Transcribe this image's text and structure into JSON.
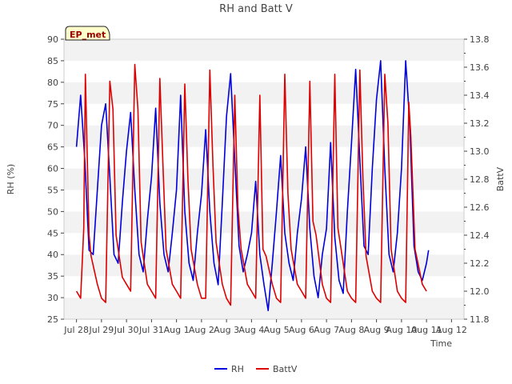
{
  "chart_data": {
    "type": "line",
    "title": "RH and Batt V",
    "xlabel": "Time",
    "ylabel_left": "RH (%)",
    "ylabel_right": "BattV",
    "station_label": "EP_met",
    "x_ticks": [
      "Jul 28",
      "Jul 29",
      "Jul 30",
      "Jul 31",
      "Aug 1",
      "Aug 2",
      "Aug 3",
      "Aug 4",
      "Aug 5",
      "Aug 6",
      "Aug 7",
      "Aug 8",
      "Aug 9",
      "Aug 10",
      "Aug 11",
      "Aug 12"
    ],
    "x_tick_labels": [
      "Jul 28",
      "Jul 29",
      "Jul 30",
      "Jul 31",
      "Aug 1",
      "Aug 2",
      "Aug 3",
      "Aug 4",
      "Aug 5",
      "Aug 6",
      "Aug 7",
      "Aug 8",
      "Aug 9",
      "Aug 10",
      "Aug 11",
      "Aug 12"
    ],
    "ylim_left": [
      25,
      90
    ],
    "yticks_left": [
      25,
      30,
      35,
      40,
      45,
      50,
      55,
      60,
      65,
      70,
      75,
      80,
      85,
      90
    ],
    "ylim_right": [
      11.8,
      13.8
    ],
    "yticks_right": [
      11.8,
      12.0,
      12.2,
      12.4,
      12.6,
      12.8,
      13.0,
      13.2,
      13.4,
      13.6,
      13.8
    ],
    "grid": "horizontal bands",
    "legend_position": "bottom-center",
    "series": [
      {
        "name": "RH",
        "axis": "left",
        "color": "#0000dd",
        "points": [
          [
            "Jul 28 00:00",
            65
          ],
          [
            "Jul 28 04:00",
            77
          ],
          [
            "Jul 28 08:00",
            62
          ],
          [
            "Jul 28 12:00",
            41
          ],
          [
            "Jul 28 16:00",
            40
          ],
          [
            "Jul 28 20:00",
            55
          ],
          [
            "Jul 29 00:00",
            70
          ],
          [
            "Jul 29 04:00",
            75
          ],
          [
            "Jul 29 08:00",
            58
          ],
          [
            "Jul 29 12:00",
            40
          ],
          [
            "Jul 29 16:00",
            38
          ],
          [
            "Jul 29 20:00",
            52
          ],
          [
            "Jul 30 00:00",
            64
          ],
          [
            "Jul 30 04:00",
            73
          ],
          [
            "Jul 30 08:00",
            55
          ],
          [
            "Jul 30 12:00",
            40
          ],
          [
            "Jul 30 16:00",
            36
          ],
          [
            "Jul 30 20:00",
            48
          ],
          [
            "Jul 31 00:00",
            58
          ],
          [
            "Jul 31 04:00",
            74
          ],
          [
            "Jul 31 08:00",
            52
          ],
          [
            "Jul 31 12:00",
            40
          ],
          [
            "Jul 31 16:00",
            36
          ],
          [
            "Jul 31 20:00",
            45
          ],
          [
            "Aug 1 00:00",
            55
          ],
          [
            "Aug 1 04:00",
            77
          ],
          [
            "Aug 1 08:00",
            50
          ],
          [
            "Aug 1 12:00",
            38
          ],
          [
            "Aug 1 16:00",
            34
          ],
          [
            "Aug 1 20:00",
            45
          ],
          [
            "Aug 2 00:00",
            54
          ],
          [
            "Aug 2 04:00",
            69
          ],
          [
            "Aug 2 08:00",
            50
          ],
          [
            "Aug 2 12:00",
            38
          ],
          [
            "Aug 2 16:00",
            33
          ],
          [
            "Aug 2 20:00",
            52
          ],
          [
            "Aug 3 00:00",
            72
          ],
          [
            "Aug 3 04:00",
            82
          ],
          [
            "Aug 3 08:00",
            62
          ],
          [
            "Aug 3 12:00",
            42
          ],
          [
            "Aug 3 16:00",
            36
          ],
          [
            "Aug 3 20:00",
            40
          ],
          [
            "Aug 4 00:00",
            45
          ],
          [
            "Aug 4 04:00",
            57
          ],
          [
            "Aug 4 08:00",
            40
          ],
          [
            "Aug 4 12:00",
            33
          ],
          [
            "Aug 4 16:00",
            27
          ],
          [
            "Aug 4 20:00",
            38
          ],
          [
            "Aug 5 00:00",
            50
          ],
          [
            "Aug 5 04:00",
            63
          ],
          [
            "Aug 5 08:00",
            45
          ],
          [
            "Aug 5 12:00",
            38
          ],
          [
            "Aug 5 16:00",
            34
          ],
          [
            "Aug 5 20:00",
            45
          ],
          [
            "Aug 6 00:00",
            53
          ],
          [
            "Aug 6 04:00",
            65
          ],
          [
            "Aug 6 08:00",
            46
          ],
          [
            "Aug 6 12:00",
            35
          ],
          [
            "Aug 6 16:00",
            30
          ],
          [
            "Aug 6 20:00",
            40
          ],
          [
            "Aug 7 00:00",
            46
          ],
          [
            "Aug 7 04:00",
            66
          ],
          [
            "Aug 7 08:00",
            44
          ],
          [
            "Aug 7 12:00",
            34
          ],
          [
            "Aug 7 16:00",
            31
          ],
          [
            "Aug 7 20:00",
            50
          ],
          [
            "Aug 8 00:00",
            66
          ],
          [
            "Aug 8 04:00",
            83
          ],
          [
            "Aug 8 08:00",
            62
          ],
          [
            "Aug 8 12:00",
            42
          ],
          [
            "Aug 8 16:00",
            40
          ],
          [
            "Aug 8 20:00",
            60
          ],
          [
            "Aug 9 00:00",
            76
          ],
          [
            "Aug 9 04:00",
            85
          ],
          [
            "Aug 9 08:00",
            60
          ],
          [
            "Aug 9 12:00",
            40
          ],
          [
            "Aug 9 16:00",
            36
          ],
          [
            "Aug 9 20:00",
            45
          ],
          [
            "Aug 10 00:00",
            60
          ],
          [
            "Aug 10 04:00",
            85
          ],
          [
            "Aug 10 08:00",
            70
          ],
          [
            "Aug 10 12:00",
            42
          ],
          [
            "Aug 10 16:00",
            36
          ],
          [
            "Aug 10 20:00",
            34
          ],
          [
            "Aug 11 00:00",
            38
          ],
          [
            "Aug 11 02:00",
            41
          ]
        ]
      },
      {
        "name": "BattV",
        "axis": "right",
        "color": "#dd0000",
        "points": [
          [
            "Jul 28 00:00",
            12.0
          ],
          [
            "Jul 28 04:00",
            11.95
          ],
          [
            "Jul 28 07:00",
            12.45
          ],
          [
            "Jul 28 08:30",
            13.55
          ],
          [
            "Jul 28 12:00",
            12.4
          ],
          [
            "Jul 28 14:00",
            12.25
          ],
          [
            "Jul 28 20:00",
            12.05
          ],
          [
            "Jul 29 00:00",
            11.95
          ],
          [
            "Jul 29 04:00",
            11.92
          ],
          [
            "Jul 29 08:00",
            13.5
          ],
          [
            "Jul 29 11:00",
            13.3
          ],
          [
            "Jul 29 14:00",
            12.4
          ],
          [
            "Jul 29 20:00",
            12.1
          ],
          [
            "Jul 30 00:00",
            12.05
          ],
          [
            "Jul 30 04:00",
            12.0
          ],
          [
            "Jul 30 08:00",
            13.62
          ],
          [
            "Jul 30 11:00",
            13.3
          ],
          [
            "Jul 30 14:00",
            12.35
          ],
          [
            "Jul 30 20:00",
            12.05
          ],
          [
            "Jul 31 00:00",
            12.0
          ],
          [
            "Jul 31 04:00",
            11.95
          ],
          [
            "Jul 31 08:00",
            13.52
          ],
          [
            "Jul 31 11:00",
            12.9
          ],
          [
            "Jul 31 14:00",
            12.3
          ],
          [
            "Jul 31 20:00",
            12.05
          ],
          [
            "Aug 1 00:00",
            12.0
          ],
          [
            "Aug 1 04:00",
            11.95
          ],
          [
            "Aug 1 08:00",
            13.48
          ],
          [
            "Aug 1 11:00",
            12.8
          ],
          [
            "Aug 1 14:00",
            12.3
          ],
          [
            "Aug 1 20:00",
            12.05
          ],
          [
            "Aug 2 00:00",
            11.95
          ],
          [
            "Aug 2 04:00",
            11.95
          ],
          [
            "Aug 2 08:00",
            13.58
          ],
          [
            "Aug 2 11:00",
            12.9
          ],
          [
            "Aug 2 14:00",
            12.35
          ],
          [
            "Aug 2 20:00",
            12.05
          ],
          [
            "Aug 3 00:00",
            11.95
          ],
          [
            "Aug 3 04:00",
            11.9
          ],
          [
            "Aug 3 08:00",
            13.4
          ],
          [
            "Aug 3 11:00",
            12.6
          ],
          [
            "Aug 3 14:00",
            12.3
          ],
          [
            "Aug 3 20:00",
            12.05
          ],
          [
            "Aug 4 00:00",
            12.0
          ],
          [
            "Aug 4 04:00",
            11.95
          ],
          [
            "Aug 4 08:00",
            13.4
          ],
          [
            "Aug 4 11:00",
            12.3
          ],
          [
            "Aug 4 14:00",
            12.25
          ],
          [
            "Aug 4 20:00",
            12.05
          ],
          [
            "Aug 5 00:00",
            11.95
          ],
          [
            "Aug 5 04:00",
            11.92
          ],
          [
            "Aug 5 08:00",
            13.55
          ],
          [
            "Aug 5 11:00",
            12.7
          ],
          [
            "Aug 5 14:00",
            12.3
          ],
          [
            "Aug 5 20:00",
            12.05
          ],
          [
            "Aug 6 00:00",
            12.0
          ],
          [
            "Aug 6 04:00",
            11.95
          ],
          [
            "Aug 6 08:00",
            13.5
          ],
          [
            "Aug 6 11:00",
            12.5
          ],
          [
            "Aug 6 14:00",
            12.4
          ],
          [
            "Aug 6 20:00",
            12.05
          ],
          [
            "Aug 7 00:00",
            11.95
          ],
          [
            "Aug 7 04:00",
            11.92
          ],
          [
            "Aug 7 08:00",
            13.55
          ],
          [
            "Aug 7 11:00",
            12.45
          ],
          [
            "Aug 7 14:00",
            12.3
          ],
          [
            "Aug 7 20:00",
            12.0
          ],
          [
            "Aug 8 00:00",
            11.95
          ],
          [
            "Aug 8 04:00",
            11.92
          ],
          [
            "Aug 8 08:00",
            13.58
          ],
          [
            "Aug 8 11:00",
            12.8
          ],
          [
            "Aug 8 14:00",
            12.25
          ],
          [
            "Aug 8 20:00",
            12.0
          ],
          [
            "Aug 9 00:00",
            11.95
          ],
          [
            "Aug 9 04:00",
            11.92
          ],
          [
            "Aug 9 08:00",
            13.55
          ],
          [
            "Aug 9 11:00",
            13.2
          ],
          [
            "Aug 9 14:00",
            12.3
          ],
          [
            "Aug 9 20:00",
            12.0
          ],
          [
            "Aug 10 00:00",
            11.95
          ],
          [
            "Aug 10 04:00",
            11.92
          ],
          [
            "Aug 10 07:00",
            13.35
          ],
          [
            "Aug 10 09:00",
            13.1
          ],
          [
            "Aug 10 13:00",
            12.3
          ],
          [
            "Aug 10 20:00",
            12.05
          ],
          [
            "Aug 11 00:00",
            12.0
          ]
        ]
      }
    ]
  }
}
